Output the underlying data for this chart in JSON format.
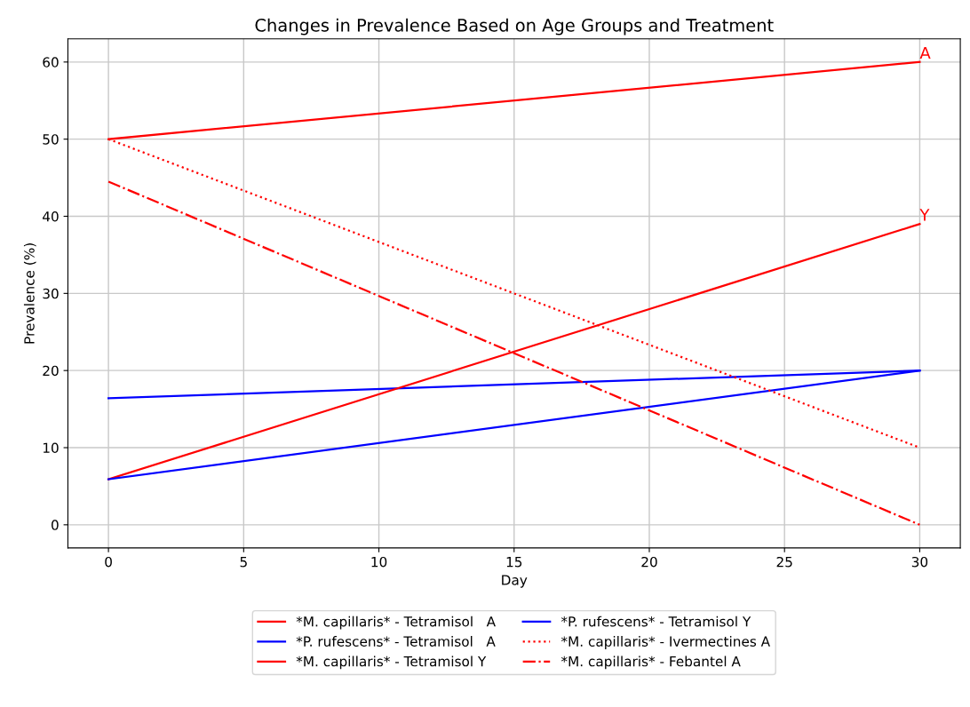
{
  "chart_data": {
    "type": "line",
    "title": "Changes in Prevalence Based on Age Groups and Treatment",
    "xlabel": "Day",
    "ylabel": "Prevalence (%)",
    "x": [
      0,
      30
    ],
    "series": [
      {
        "name": "*M. capillaris* - Tetramisol   A",
        "color": "#ff0000",
        "values": [
          50,
          60
        ],
        "line_style": "solid"
      },
      {
        "name": "*P. rufescens* - Tetramisol   A",
        "color": "#0000ff",
        "values": [
          16.4,
          20
        ],
        "line_style": "solid"
      },
      {
        "name": "*M. capillaris* - Tetramisol Y",
        "color": "#ff0000",
        "values": [
          5.9,
          39
        ],
        "line_style": "solid"
      },
      {
        "name": "*P. rufescens* - Tetramisol Y",
        "color": "#0000ff",
        "values": [
          5.9,
          20
        ],
        "line_style": "solid"
      },
      {
        "name": "*M. capillaris* - Ivermectines A",
        "color": "#ff0000",
        "values": [
          50,
          10
        ],
        "line_style": "dotted"
      },
      {
        "name": "*M. capillaris* - Febantel A",
        "color": "#ff0000",
        "values": [
          44.5,
          0
        ],
        "line_style": "dashdot"
      }
    ],
    "annotations": [
      {
        "text": "A",
        "x": 30,
        "y": 60
      },
      {
        "text": "Y",
        "x": 30,
        "y": 39
      }
    ],
    "xlim": [
      -1.5,
      31.5
    ],
    "xticks": [
      0,
      5,
      10,
      15,
      20,
      25,
      30
    ],
    "ylim": [
      -3,
      63
    ],
    "yticks": [
      0,
      10,
      20,
      30,
      40,
      50,
      60
    ],
    "grid": true,
    "legend": "bottom"
  }
}
